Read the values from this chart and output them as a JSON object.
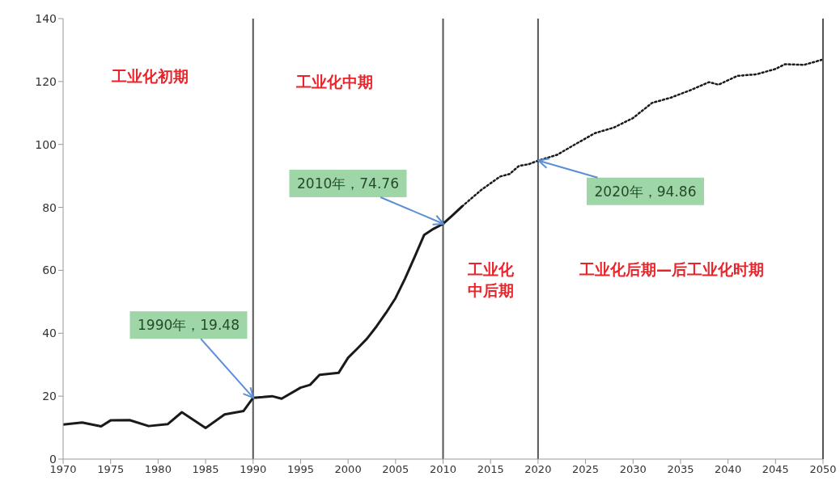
{
  "chart_data": {
    "type": "line",
    "series": [
      {
        "color": "#1a1a1a",
        "line_style": "solid",
        "x": [
          1970,
          1972,
          1974,
          1975,
          1977,
          1979,
          1981,
          1982.5,
          1985,
          1987,
          1989,
          1990,
          1991,
          1992,
          1993,
          1995,
          1996,
          1997,
          1999,
          2000,
          2001,
          2002,
          2003,
          2004,
          2005,
          2006,
          2007,
          2008,
          2009,
          2010,
          2011,
          2012
        ],
        "values": [
          11.0,
          11.6,
          10.4,
          12.3,
          12.4,
          10.5,
          11.1,
          14.9,
          9.9,
          14.2,
          15.3,
          19.48,
          19.7,
          20.0,
          19.2,
          22.7,
          23.6,
          26.8,
          27.4,
          32.2,
          35.2,
          38.3,
          42.2,
          46.5,
          51.2,
          57.4,
          64.2,
          71.2,
          73.2,
          74.76,
          77.5,
          80.3
        ]
      },
      {
        "color": "#1a1a1a",
        "line_style": "dotted",
        "x": [
          2012,
          2014,
          2016,
          2017,
          2018,
          2019,
          2020,
          2022,
          2024,
          2026,
          2028,
          2030,
          2032,
          2034,
          2036,
          2038,
          2039,
          2041,
          2043,
          2045,
          2046,
          2048,
          2050
        ],
        "values": [
          80.3,
          85.5,
          89.8,
          90.6,
          93.2,
          93.7,
          94.86,
          96.7,
          100.2,
          103.6,
          105.4,
          108.4,
          113.2,
          114.9,
          117.2,
          119.8,
          119.0,
          121.8,
          122.3,
          124.0,
          125.5,
          125.3,
          127.0
        ]
      }
    ],
    "xlim": [
      1970,
      2050
    ],
    "xticks": [
      1970,
      1975,
      1980,
      1985,
      1990,
      1995,
      2000,
      2005,
      2010,
      2015,
      2020,
      2025,
      2030,
      2035,
      2040,
      2045,
      2050
    ],
    "ylim": [
      0,
      140
    ],
    "yticks": [
      0,
      20,
      40,
      60,
      80,
      100,
      120,
      140
    ],
    "grid": false,
    "marker": "none",
    "ref_lines": [
      {
        "axis": "x",
        "value": 1990,
        "color": "#555555"
      },
      {
        "axis": "x",
        "value": 2010,
        "color": "#555555"
      },
      {
        "axis": "x",
        "value": 2020,
        "color": "#555555"
      }
    ],
    "annotations": [
      "工业化初期",
      "工业化中期",
      "工业化中后期",
      "工业化后期—后工业化时期",
      {
        "text": "1990年，19.48",
        "x": 1990,
        "y": 19.48
      },
      {
        "text": "2010年，74.76",
        "x": 2010,
        "y": 74.76
      },
      {
        "text": "2020年，94.86",
        "x": 2020,
        "y": 94.86
      }
    ]
  }
}
